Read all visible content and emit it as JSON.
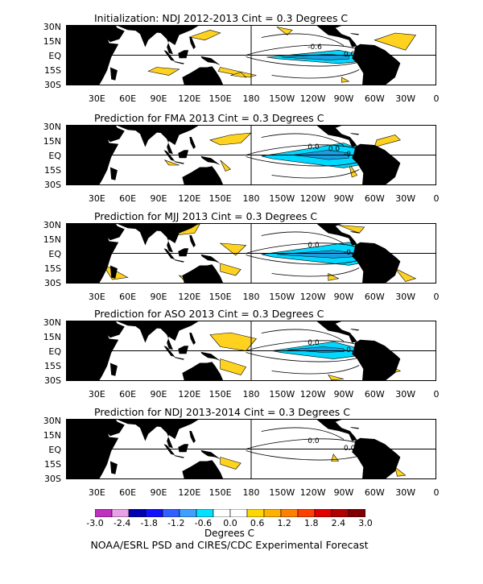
{
  "panels": [
    {
      "title": "Initialization: NDJ 2012-2013  Cint = 0.3 Degrees C",
      "contour_labels": [
        "-0.6",
        "0.0"
      ]
    },
    {
      "title": "Prediction for FMA 2013  Cint = 0.3 Degrees C",
      "contour_labels": [
        "0.0",
        "-0.6",
        "0.0"
      ]
    },
    {
      "title": "Prediction for MJJ 2013  Cint = 0.3 Degrees C",
      "contour_labels": [
        "0.0",
        "-0.6"
      ]
    },
    {
      "title": "Prediction for ASO 2013  Cint = 0.3 Degrees C",
      "contour_labels": [
        "0.0",
        "-0.6"
      ]
    },
    {
      "title": "Prediction for NDJ 2013-2014  Cint = 0.3 Degrees C",
      "contour_labels": [
        "0.0",
        "0.0"
      ]
    }
  ],
  "lat_labels": [
    "30N",
    "15N",
    "EQ",
    "15S",
    "30S"
  ],
  "lon_labels": [
    "30E",
    "60E",
    "90E",
    "120E",
    "150E",
    "180",
    "150W",
    "120W",
    "90W",
    "60W",
    "30W",
    "0"
  ],
  "colorbar": {
    "labels": [
      "-3.0",
      "-2.4",
      "-1.8",
      "-1.2",
      "-0.6",
      "0.0",
      "0.6",
      "1.2",
      "1.8",
      "2.4",
      "3.0"
    ],
    "colors": [
      "#c030c0",
      "#e8a0e8",
      "#0000b0",
      "#1010ff",
      "#3060ff",
      "#40a0ff",
      "#00e0ff",
      "#ffffff",
      "#ffffff",
      "#ffd700",
      "#ffb000",
      "#ff8000",
      "#ff4000",
      "#e00000",
      "#b00000",
      "#800000"
    ],
    "units": "Degrees C"
  },
  "footer": "NOAA/ESRL PSD and CIRES/CDC Experimental Forecast",
  "colors": {
    "land": "#000000",
    "warm": "#ffd21f",
    "cool": "#00d8ff",
    "cool_dark": "#1a9ee0"
  }
}
